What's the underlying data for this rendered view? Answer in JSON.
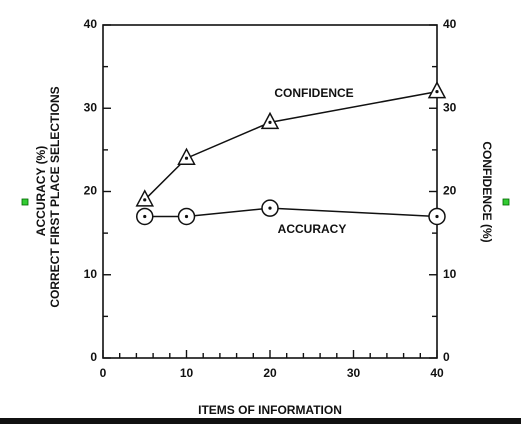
{
  "chart_data": {
    "type": "line",
    "x_label": "ITEMS OF INFORMATION",
    "y_label": [
      "ACCURACY (%)",
      "CORRECT FIRST PLACE SELECTIONS"
    ],
    "y2_label": "CONFIDENCE (%)",
    "xlim": [
      0,
      40
    ],
    "xticks": [
      0,
      10,
      20,
      30,
      40
    ],
    "ylim": [
      0,
      40
    ],
    "yticks": [
      0,
      10,
      20,
      30,
      40
    ],
    "y2lim": [
      0,
      40
    ],
    "y2ticks": [
      0,
      10,
      20,
      30,
      40
    ],
    "x": [
      5,
      10,
      20,
      40
    ],
    "series": [
      {
        "name": "CONFIDENCE",
        "color": "#111111",
        "marker": "triangle",
        "axis": "y2",
        "values": [
          19,
          24,
          28.3,
          32
        ]
      },
      {
        "name": "ACCURACY",
        "color": "#111111",
        "marker": "circle",
        "values": [
          17,
          17,
          18,
          17
        ]
      }
    ]
  }
}
